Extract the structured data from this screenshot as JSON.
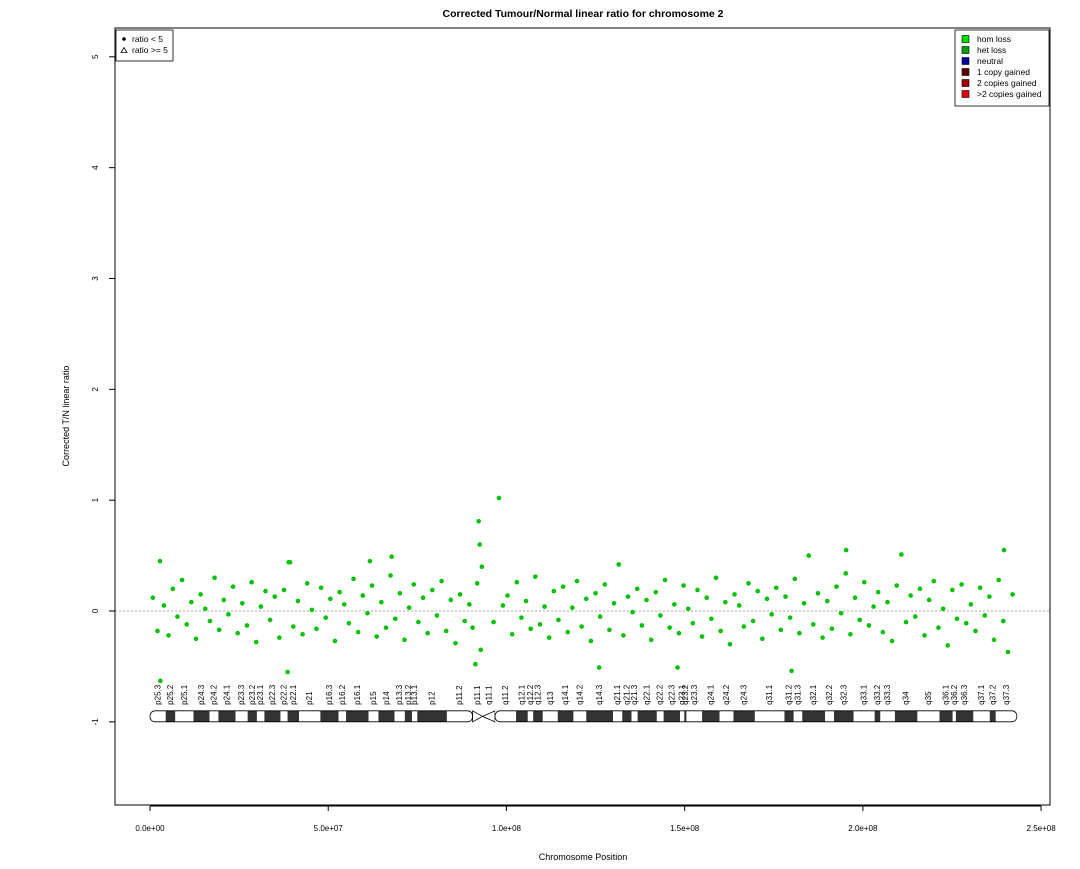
{
  "chart_data": {
    "type": "scatter",
    "title": "Corrected Tumour/Normal linear ratio for chromosome  2",
    "x_label": "Chromosome Position",
    "y_label": "Corrected T/N linear ratio",
    "color": "#00c000",
    "reference_line": 0,
    "xlim": [
      -9820000.0,
      252500000.0
    ],
    "ylim": [
      -1.75,
      5.26
    ],
    "xticks": [
      {
        "value": 0,
        "label": "0.0e+00"
      },
      {
        "value": 50000000.0,
        "label": "5.0e+07"
      },
      {
        "value": 100000000.0,
        "label": "1.0e+08"
      },
      {
        "value": 150000000.0,
        "label": "1.5e+08"
      },
      {
        "value": 200000000.0,
        "label": "2.0e+08"
      },
      {
        "value": 250000000.0,
        "label": "2.5e+08"
      }
    ],
    "yticks": [
      -1,
      0,
      1,
      2,
      3,
      4,
      5
    ],
    "x": [
      800000.0,
      2100000.0,
      2800000.0,
      3900000.0,
      5200000.0,
      6400000.0,
      7700000.0,
      9000000.0,
      10300000.0,
      11600000.0,
      12900000.0,
      14200000.0,
      15500000.0,
      16800000.0,
      18100000.0,
      19400000.0,
      20700000.0,
      22000000.0,
      23300000.0,
      24600000.0,
      25900000.0,
      27200000.0,
      28500000.0,
      29800000.0,
      31100000.0,
      32400000.0,
      33700000.0,
      35000000.0,
      36300000.0,
      37600000.0,
      38900000.0,
      40200000.0,
      41500000.0,
      42800000.0,
      44100000.0,
      45400000.0,
      46700000.0,
      48000000.0,
      49300000.0,
      50600000.0,
      51900000.0,
      53200000.0,
      54500000.0,
      55800000.0,
      57100000.0,
      58400000.0,
      59700000.0,
      61000000.0,
      62300000.0,
      63600000.0,
      64900000.0,
      66200000.0,
      67500000.0,
      68800000.0,
      70100000.0,
      71400000.0,
      72700000.0,
      74000000.0,
      75300000.0,
      76600000.0,
      77900000.0,
      79200000.0,
      80500000.0,
      81800000.0,
      83100000.0,
      84400000.0,
      85700000.0,
      87000000.0,
      88300000.0,
      89600000.0,
      90500000.0,
      91300000.0,
      91800000.0,
      92200000.0,
      92500000.0,
      92800000.0,
      93100000.0,
      96400000.0,
      97900000.0,
      99000000.0,
      100300000.0,
      101600000.0,
      102900000.0,
      104200000.0,
      105500000.0,
      106800000.0,
      108100000.0,
      109400000.0,
      110700000.0,
      112000000.0,
      113300000.0,
      114600000.0,
      115900000.0,
      117200000.0,
      118500000.0,
      119800000.0,
      121100000.0,
      122400000.0,
      123700000.0,
      125000000.0,
      126300000.0,
      127600000.0,
      128900000.0,
      130200000.0,
      131500000.0,
      132800000.0,
      134100000.0,
      135400000.0,
      136700000.0,
      138000000.0,
      139300000.0,
      140600000.0,
      141900000.0,
      143200000.0,
      144500000.0,
      145800000.0,
      147100000.0,
      148400000.0,
      149700000.0,
      151000000.0,
      152300000.0,
      153600000.0,
      154900000.0,
      156200000.0,
      157500000.0,
      158800000.0,
      160100000.0,
      161400000.0,
      162700000.0,
      164000000.0,
      165300000.0,
      166600000.0,
      167900000.0,
      169200000.0,
      170500000.0,
      171800000.0,
      173100000.0,
      174400000.0,
      175700000.0,
      177000000.0,
      178300000.0,
      179600000.0,
      180900000.0,
      182200000.0,
      183500000.0,
      184800000.0,
      186100000.0,
      187400000.0,
      188700000.0,
      190000000.0,
      191300000.0,
      192600000.0,
      193900000.0,
      195200000.0,
      196500000.0,
      197800000.0,
      199100000.0,
      200400000.0,
      201700000.0,
      203000000.0,
      204300000.0,
      205600000.0,
      206900000.0,
      208200000.0,
      209500000.0,
      210800000.0,
      212100000.0,
      213400000.0,
      214700000.0,
      216000000.0,
      217300000.0,
      218600000.0,
      219900000.0,
      221200000.0,
      222500000.0,
      223800000.0,
      225100000.0,
      226400000.0,
      227700000.0,
      229000000.0,
      230300000.0,
      231600000.0,
      232900000.0,
      234200000.0,
      235500000.0,
      236800000.0,
      238100000.0,
      239400000.0,
      240700000.0,
      242000000.0,
      2900000.0,
      39300000.0,
      38600000.0,
      61700000.0,
      67800000.0,
      126000000.0,
      148000000.0,
      180000000.0,
      195300000.0,
      239600000.0
    ],
    "values": [
      0.12,
      -0.18,
      0.45,
      0.05,
      -0.22,
      0.2,
      -0.05,
      0.28,
      -0.12,
      0.08,
      -0.25,
      0.15,
      0.02,
      -0.09,
      0.3,
      -0.17,
      0.1,
      -0.03,
      0.22,
      -0.2,
      0.07,
      -0.13,
      0.26,
      -0.28,
      0.04,
      0.18,
      -0.08,
      0.13,
      -0.24,
      0.19,
      0.44,
      -0.14,
      0.09,
      -0.21,
      0.25,
      0.01,
      -0.16,
      0.21,
      -0.06,
      0.11,
      -0.27,
      0.17,
      0.06,
      -0.11,
      0.29,
      -0.19,
      0.14,
      -0.02,
      0.23,
      -0.23,
      0.08,
      -0.15,
      0.32,
      -0.07,
      0.16,
      -0.26,
      0.03,
      0.24,
      -0.1,
      0.12,
      -0.2,
      0.19,
      -0.04,
      0.27,
      -0.18,
      0.1,
      -0.29,
      0.15,
      -0.09,
      0.06,
      -0.15,
      -0.48,
      0.25,
      0.81,
      0.6,
      -0.35,
      0.4,
      -0.1,
      1.02,
      0.05,
      0.14,
      -0.21,
      0.26,
      -0.06,
      0.09,
      -0.16,
      0.31,
      -0.12,
      0.04,
      -0.24,
      0.18,
      -0.08,
      0.22,
      -0.19,
      0.03,
      0.27,
      -0.14,
      0.11,
      -0.27,
      0.16,
      -0.05,
      0.24,
      -0.17,
      0.07,
      0.42,
      -0.22,
      0.13,
      -0.01,
      0.2,
      -0.13,
      0.1,
      -0.26,
      0.17,
      -0.04,
      0.28,
      -0.15,
      0.06,
      -0.2,
      0.23,
      0.02,
      -0.11,
      0.19,
      -0.23,
      0.12,
      -0.07,
      0.3,
      -0.18,
      0.08,
      -0.3,
      0.15,
      0.05,
      -0.14,
      0.25,
      -0.09,
      0.18,
      -0.25,
      0.11,
      -0.03,
      0.21,
      -0.17,
      0.13,
      -0.06,
      0.29,
      -0.2,
      0.07,
      0.5,
      -0.12,
      0.16,
      -0.24,
      0.09,
      -0.16,
      0.22,
      -0.02,
      0.34,
      -0.21,
      0.12,
      -0.08,
      0.26,
      -0.13,
      0.04,
      0.17,
      -0.19,
      0.08,
      -0.27,
      0.23,
      0.51,
      -0.1,
      0.14,
      -0.05,
      0.2,
      -0.22,
      0.1,
      0.27,
      -0.15,
      0.02,
      -0.31,
      0.19,
      -0.07,
      0.24,
      -0.11,
      0.06,
      -0.18,
      0.21,
      -0.04,
      0.13,
      -0.26,
      0.28,
      -0.09,
      -0.37,
      0.15,
      -0.63,
      0.44,
      -0.55,
      0.45,
      0.49,
      -0.51,
      -0.51,
      -0.54,
      0.55,
      0.55
    ],
    "shape_legend": {
      "position": "top-left",
      "entries": [
        "ratio < 5",
        "ratio >= 5"
      ]
    },
    "copy_number_legend": {
      "position": "top-right",
      "entries": [
        {
          "name": "hom loss",
          "color": "#00e000"
        },
        {
          "name": "het loss",
          "color": "#00a000"
        },
        {
          "name": "neutral",
          "color": "#0000a0"
        },
        {
          "name": "1 copy gained",
          "color": "#600000"
        },
        {
          "name": "2 copies gained",
          "color": "#a00000"
        },
        {
          "name": ">2 copies gained",
          "color": "#e00000"
        }
      ]
    },
    "ideogram_y": -0.95,
    "bands": [
      {
        "name": "p25.3",
        "start": 0,
        "end": 4400000.0,
        "stain": "gneg"
      },
      {
        "name": "p25.2",
        "start": 4400000.0,
        "end": 7100000.0,
        "stain": "gpos"
      },
      {
        "name": "p25.1",
        "start": 7100000.0,
        "end": 12200000.0,
        "stain": "gneg"
      },
      {
        "name": "p24.3",
        "start": 12200000.0,
        "end": 16700000.0,
        "stain": "gpos"
      },
      {
        "name": "p24.2",
        "start": 16700000.0,
        "end": 19200000.0,
        "stain": "gneg"
      },
      {
        "name": "p24.1",
        "start": 19200000.0,
        "end": 24000000.0,
        "stain": "gpos"
      },
      {
        "name": "p23.3",
        "start": 24000000.0,
        "end": 27400000.0,
        "stain": "gneg"
      },
      {
        "name": "p23.2",
        "start": 27400000.0,
        "end": 30000000.0,
        "stain": "gpos"
      },
      {
        "name": "p23.1",
        "start": 30000000.0,
        "end": 32100000.0,
        "stain": "gneg"
      },
      {
        "name": "p22.3",
        "start": 32100000.0,
        "end": 36600000.0,
        "stain": "gpos"
      },
      {
        "name": "p22.2",
        "start": 36600000.0,
        "end": 38600000.0,
        "stain": "gneg"
      },
      {
        "name": "p22.1",
        "start": 38600000.0,
        "end": 41800000.0,
        "stain": "gpos"
      },
      {
        "name": "p21",
        "start": 41800000.0,
        "end": 47800000.0,
        "stain": "gneg"
      },
      {
        "name": "p16.3",
        "start": 47800000.0,
        "end": 52900000.0,
        "stain": "gpos"
      },
      {
        "name": "p16.2",
        "start": 52900000.0,
        "end": 55000000.0,
        "stain": "gneg"
      },
      {
        "name": "p16.1",
        "start": 55000000.0,
        "end": 61300000.0,
        "stain": "gpos"
      },
      {
        "name": "p15",
        "start": 61300000.0,
        "end": 64100000.0,
        "stain": "gneg"
      },
      {
        "name": "p14",
        "start": 64100000.0,
        "end": 68600000.0,
        "stain": "gpos"
      },
      {
        "name": "p13.3",
        "start": 68600000.0,
        "end": 71500000.0,
        "stain": "gneg"
      },
      {
        "name": "p13.2",
        "start": 71500000.0,
        "end": 73500000.0,
        "stain": "gpos"
      },
      {
        "name": "p13.1",
        "start": 73500000.0,
        "end": 75000000.0,
        "stain": "gneg"
      },
      {
        "name": "p12",
        "start": 75000000.0,
        "end": 83300000.0,
        "stain": "gpos"
      },
      {
        "name": "p11.2",
        "start": 83300000.0,
        "end": 90500000.0,
        "stain": "gneg"
      },
      {
        "name": "p11.1",
        "start": 90500000.0,
        "end": 93300000.0,
        "stain": "acen-p"
      },
      {
        "name": "q11.1",
        "start": 93300000.0,
        "end": 96800000.0,
        "stain": "acen-q"
      },
      {
        "name": "q11.2",
        "start": 96800000.0,
        "end": 102700000.0,
        "stain": "gneg"
      },
      {
        "name": "q12.1",
        "start": 102700000.0,
        "end": 106000000.0,
        "stain": "gpos"
      },
      {
        "name": "q12.2",
        "start": 106000000.0,
        "end": 107500000.0,
        "stain": "gneg"
      },
      {
        "name": "q12.3",
        "start": 107500000.0,
        "end": 110200000.0,
        "stain": "gpos"
      },
      {
        "name": "q13",
        "start": 110200000.0,
        "end": 114400000.0,
        "stain": "gneg"
      },
      {
        "name": "q14.1",
        "start": 114400000.0,
        "end": 118800000.0,
        "stain": "gpos"
      },
      {
        "name": "q14.2",
        "start": 118800000.0,
        "end": 122400000.0,
        "stain": "gneg"
      },
      {
        "name": "q14.3",
        "start": 122400000.0,
        "end": 129900000.0,
        "stain": "gpos"
      },
      {
        "name": "q21.1",
        "start": 129900000.0,
        "end": 132500000.0,
        "stain": "gneg"
      },
      {
        "name": "q21.2",
        "start": 132500000.0,
        "end": 135100000.0,
        "stain": "gpos"
      },
      {
        "name": "q21.3",
        "start": 135100000.0,
        "end": 136800000.0,
        "stain": "gneg"
      },
      {
        "name": "q22.1",
        "start": 136800000.0,
        "end": 142200000.0,
        "stain": "gpos"
      },
      {
        "name": "q22.2",
        "start": 142200000.0,
        "end": 144100000.0,
        "stain": "gneg"
      },
      {
        "name": "q22.3",
        "start": 144100000.0,
        "end": 148700000.0,
        "stain": "gpos"
      },
      {
        "name": "q23.1",
        "start": 148700000.0,
        "end": 149900000.0,
        "stain": "gneg"
      },
      {
        "name": "q23.2",
        "start": 149900000.0,
        "end": 150500000.0,
        "stain": "gpos"
      },
      {
        "name": "q23.3",
        "start": 150500000.0,
        "end": 154900000.0,
        "stain": "gneg"
      },
      {
        "name": "q24.1",
        "start": 154900000.0,
        "end": 159800000.0,
        "stain": "gpos"
      },
      {
        "name": "q24.2",
        "start": 159800000.0,
        "end": 163700000.0,
        "stain": "gneg"
      },
      {
        "name": "q24.3",
        "start": 163700000.0,
        "end": 169700000.0,
        "stain": "gpos"
      },
      {
        "name": "q31.1",
        "start": 169700000.0,
        "end": 178000000.0,
        "stain": "gneg"
      },
      {
        "name": "q31.2",
        "start": 178000000.0,
        "end": 180600000.0,
        "stain": "gpos"
      },
      {
        "name": "q31.3",
        "start": 180600000.0,
        "end": 183000000.0,
        "stain": "gneg"
      },
      {
        "name": "q32.1",
        "start": 183000000.0,
        "end": 189400000.0,
        "stain": "gpos"
      },
      {
        "name": "q32.2",
        "start": 189400000.0,
        "end": 191900000.0,
        "stain": "gneg"
      },
      {
        "name": "q32.3",
        "start": 191900000.0,
        "end": 197400000.0,
        "stain": "gpos"
      },
      {
        "name": "q33.1",
        "start": 197400000.0,
        "end": 203300000.0,
        "stain": "gneg"
      },
      {
        "name": "q33.2",
        "start": 203300000.0,
        "end": 204900000.0,
        "stain": "gpos"
      },
      {
        "name": "q33.3",
        "start": 204900000.0,
        "end": 209000000.0,
        "stain": "gneg"
      },
      {
        "name": "q34",
        "start": 209000000.0,
        "end": 215300000.0,
        "stain": "gpos"
      },
      {
        "name": "q35",
        "start": 215300000.0,
        "end": 221500000.0,
        "stain": "gneg"
      },
      {
        "name": "q36.1",
        "start": 221500000.0,
        "end": 225200000.0,
        "stain": "gpos"
      },
      {
        "name": "q36.2",
        "start": 225200000.0,
        "end": 226100000.0,
        "stain": "gneg"
      },
      {
        "name": "q36.3",
        "start": 226100000.0,
        "end": 231000000.0,
        "stain": "gpos"
      },
      {
        "name": "q37.1",
        "start": 231000000.0,
        "end": 235600000.0,
        "stain": "gneg"
      },
      {
        "name": "q37.2",
        "start": 235600000.0,
        "end": 237300000.0,
        "stain": "gpos"
      },
      {
        "name": "q37.3",
        "start": 237300000.0,
        "end": 243200000.0,
        "stain": "gneg"
      }
    ]
  }
}
